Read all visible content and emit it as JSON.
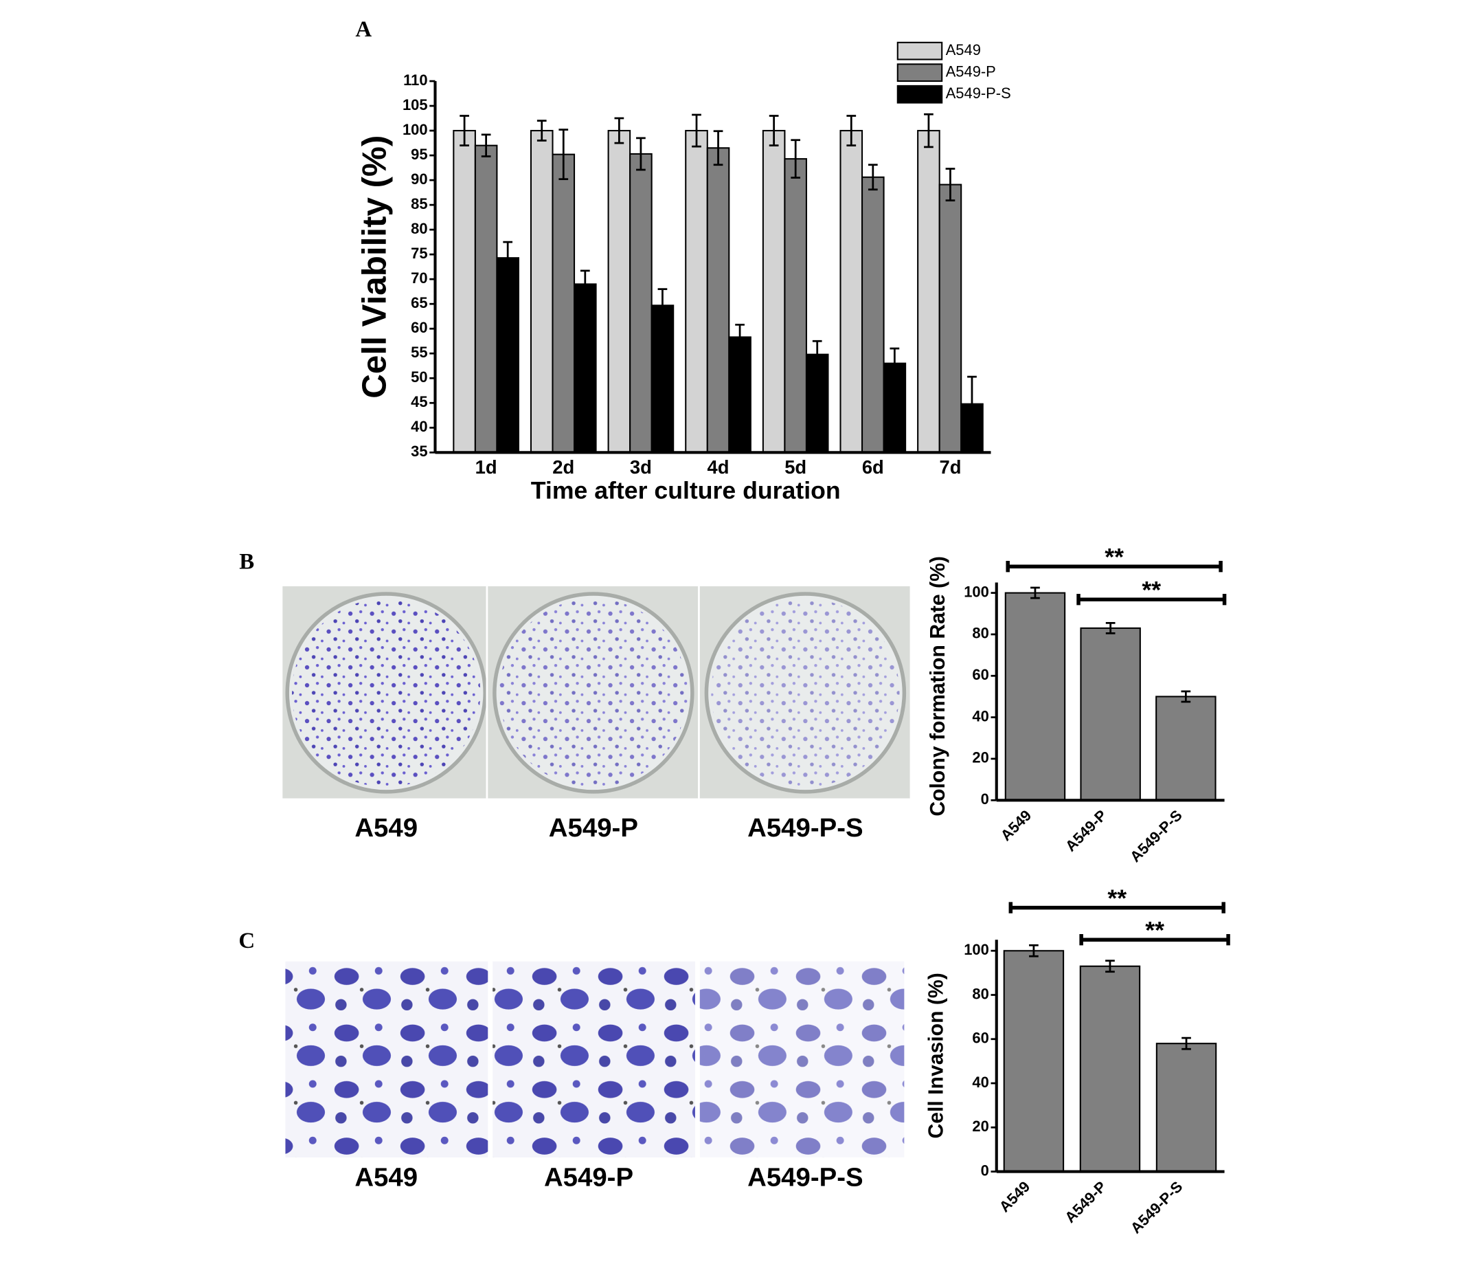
{
  "chart_data": [
    {
      "type": "bar",
      "panel": "A",
      "ylabel": "Cell Viability (%)",
      "xlabel": "Time after culture duration",
      "categories": [
        "1d",
        "2d",
        "3d",
        "4d",
        "5d",
        "6d",
        "7d"
      ],
      "series": [
        {
          "name": "A549",
          "color": "#d3d3d3",
          "values": [
            100,
            100,
            100,
            100,
            100,
            100,
            100
          ],
          "errors": [
            3,
            2,
            2.5,
            3.2,
            3,
            3,
            3.3
          ]
        },
        {
          "name": "A549-P",
          "color": "#7f7f7f",
          "values": [
            97,
            95.2,
            95.3,
            96.5,
            94.3,
            90.6,
            89.1
          ],
          "errors": [
            2.2,
            5,
            3.2,
            3.4,
            3.8,
            2.5,
            3.2
          ]
        },
        {
          "name": "A549-P-S",
          "color": "#000000",
          "values": [
            74.3,
            69,
            64.7,
            58.3,
            54.8,
            53,
            44.8
          ],
          "errors": [
            3.2,
            2.7,
            3.3,
            2.5,
            2.7,
            3,
            5.5
          ]
        }
      ],
      "ylim": [
        35,
        110
      ],
      "yticks": [
        35,
        40,
        45,
        50,
        55,
        60,
        65,
        70,
        75,
        80,
        85,
        90,
        95,
        100,
        105,
        110
      ]
    },
    {
      "type": "bar",
      "panel": "B",
      "ylabel": "Colony formation Rate (%)",
      "image_labels": [
        "A549",
        "A549-P",
        "A549-P-S"
      ],
      "categories": [
        "A549",
        "A549-P",
        "A549-P-S"
      ],
      "values": [
        100,
        83,
        50
      ],
      "errors": [
        2.5,
        2.5,
        2.5
      ],
      "color": "#808080",
      "ylim": [
        0,
        105
      ],
      "yticks": [
        0,
        20,
        40,
        60,
        80,
        100
      ],
      "annotations": [
        "**",
        "**"
      ]
    },
    {
      "type": "bar",
      "panel": "C",
      "ylabel": "Cell Invasion (%)",
      "image_labels": [
        "A549",
        "A549-P",
        "A549-P-S"
      ],
      "categories": [
        "A549",
        "A549-P",
        "A549-P-S"
      ],
      "values": [
        100,
        93,
        58
      ],
      "errors": [
        2.5,
        2.5,
        2.5
      ],
      "color": "#808080",
      "ylim": [
        0,
        105
      ],
      "yticks": [
        0,
        20,
        40,
        60,
        80,
        100
      ],
      "annotations": [
        "**",
        "**"
      ]
    }
  ]
}
